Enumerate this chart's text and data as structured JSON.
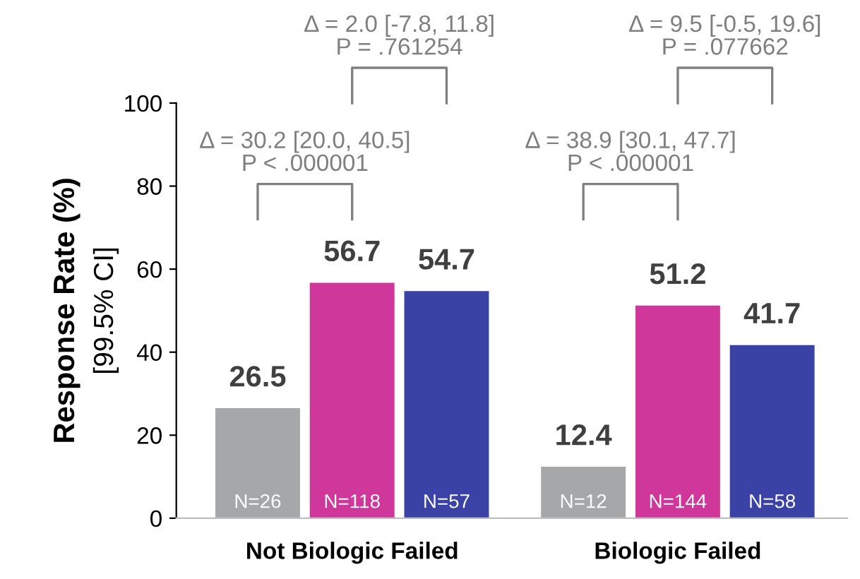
{
  "chart_data": {
    "type": "bar",
    "ylabel": "Response Rate (%)\n[99.5% CI]",
    "categories": [
      "Not Biologic Failed",
      "Biologic Failed"
    ],
    "series": [
      {
        "color": "#a5a7a9",
        "values": [
          26.5,
          12.4
        ]
      },
      {
        "color": "#d0379a",
        "values": [
          56.7,
          51.2
        ]
      },
      {
        "color": "#3a42a6",
        "values": [
          54.7,
          41.7
        ]
      }
    ],
    "data_labels": true,
    "ylim": [
      0,
      100
    ],
    "yticks": [
      0,
      20,
      40,
      60,
      80,
      100
    ],
    "grid": false,
    "legend": false,
    "annotations": [
      "N=26",
      "N=118",
      "N=57",
      "N=12",
      "N=144",
      "N=58",
      "Δ = 30.2 [20.0, 40.5]\nP < .000001",
      "Δ = 2.0 [-7.8, 11.8]\nP = .761254",
      "Δ = 38.9 [30.1, 47.7]\nP < .000001",
      "Δ = 9.5 [-0.5, 19.6]\nP = .077662"
    ]
  }
}
